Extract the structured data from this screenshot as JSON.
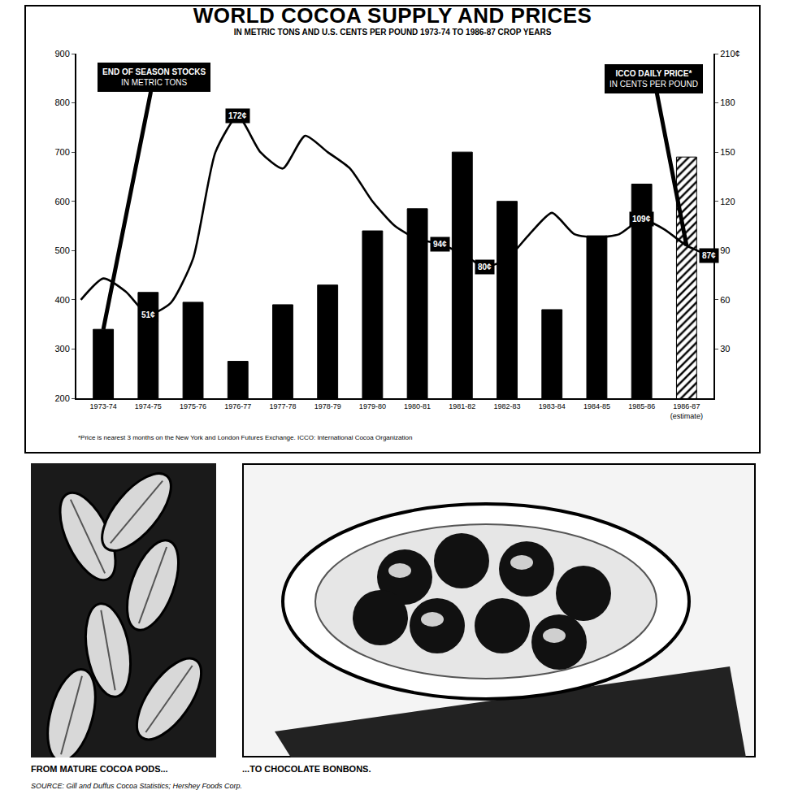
{
  "chart_data": {
    "type": "bar",
    "title": "WORLD COCOA SUPPLY AND PRICES",
    "subtitle": "IN METRIC TONS AND U.S. CENTS PER POUND 1973-74 TO 1986-87 CROP YEARS",
    "categories": [
      "1973-74",
      "1974-75",
      "1975-76",
      "1976-77",
      "1977-78",
      "1978-79",
      "1979-80",
      "1980-81",
      "1981-82",
      "1982-83",
      "1983-84",
      "1984-85",
      "1985-86",
      "1986-87 (estimate)"
    ],
    "series": [
      {
        "name": "END OF SEASON STOCKS",
        "unit": "IN METRIC TONS",
        "type": "bar",
        "color": "#000000",
        "values": [
          340,
          415,
          395,
          275,
          390,
          430,
          540,
          585,
          700,
          600,
          380,
          530,
          635,
          690
        ]
      },
      {
        "name": "ICCO DAILY PRICE*",
        "unit": "IN CENTS PER POUND",
        "type": "line",
        "axis": "y2",
        "color": "#000000",
        "x": [
          -0.5,
          0,
          0.5,
          1,
          1.5,
          2,
          2.5,
          3,
          3.5,
          4,
          4.5,
          5,
          5.5,
          6,
          6.5,
          7,
          7.5,
          8,
          8.5,
          9,
          9.5,
          10,
          10.5,
          11,
          11.5,
          12,
          12.5,
          13,
          13.5
        ],
        "values": [
          60,
          73,
          65,
          51,
          58,
          85,
          150,
          172,
          150,
          140,
          160,
          150,
          140,
          120,
          105,
          97,
          94,
          88,
          80,
          85,
          100,
          113,
          100,
          98,
          100,
          109,
          103,
          93,
          87
        ],
        "value_labels": [
          null,
          null,
          null,
          "51¢",
          null,
          null,
          null,
          "172¢",
          null,
          null,
          null,
          null,
          null,
          null,
          null,
          null,
          "94¢",
          null,
          "80¢",
          null,
          null,
          null,
          null,
          null,
          null,
          "109¢",
          null,
          null,
          "87¢"
        ]
      }
    ],
    "ylim": [
      200,
      900
    ],
    "yticks": [
      200,
      300,
      400,
      500,
      600,
      700,
      800,
      900
    ],
    "y2lim": [
      0,
      210
    ],
    "y2ticks": [
      30,
      60,
      90,
      120,
      150,
      180,
      {
        "value": 210,
        "label": "210¢"
      }
    ],
    "grid": false,
    "footnote": "*Price is nearest 3 months on the New York and London Futures Exchange. ICCO: International Cocoa Organization"
  },
  "page": {
    "photos": [
      {
        "caption": "FROM MATURE COCOA PODS..."
      },
      {
        "caption": "...TO CHOCOLATE BONBONS."
      }
    ],
    "source": "SOURCE: Gill and Duffus Cocoa Statistics; Hershey Foods Corp."
  }
}
